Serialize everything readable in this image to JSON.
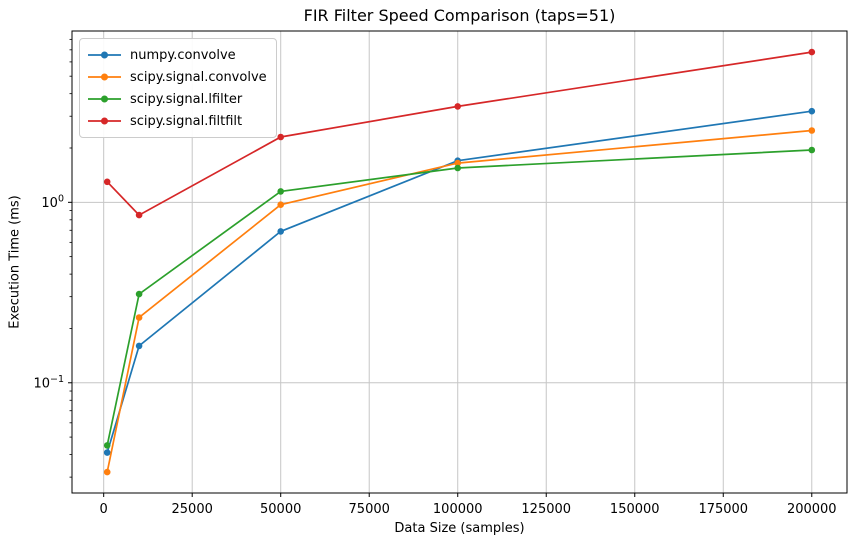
{
  "chart_data": {
    "type": "line",
    "title": "FIR Filter Speed Comparison (taps=51)",
    "xlabel": "Data Size (samples)",
    "ylabel": "Execution Time (ms)",
    "yscale": "log",
    "grid": true,
    "legend_position": "upper left",
    "x": [
      1000,
      10000,
      50000,
      100000,
      200000
    ],
    "series": [
      {
        "name": "numpy.convolve",
        "color": "#1f77b4",
        "values": [
          0.041,
          0.16,
          0.69,
          1.7,
          3.2
        ]
      },
      {
        "name": "scipy.signal.convolve",
        "color": "#ff7f0e",
        "values": [
          0.032,
          0.23,
          0.97,
          1.65,
          2.5
        ]
      },
      {
        "name": "scipy.signal.lfilter",
        "color": "#2ca02c",
        "values": [
          0.045,
          0.31,
          1.15,
          1.55,
          1.95
        ]
      },
      {
        "name": "scipy.signal.filtfilt",
        "color": "#d62728",
        "values": [
          1.3,
          0.85,
          2.3,
          3.4,
          6.8
        ]
      }
    ],
    "xlim": [
      -8950,
      209950
    ],
    "ylim": [
      0.0245,
      8.9
    ],
    "x_ticks": [
      0,
      25000,
      50000,
      75000,
      100000,
      125000,
      150000,
      175000,
      200000
    ],
    "x_tick_labels": [
      "0",
      "25000",
      "50000",
      "75000",
      "100000",
      "125000",
      "150000",
      "175000",
      "200000"
    ],
    "y_major_ticks": [
      {
        "value": 1,
        "base": "10",
        "exponent": "0"
      },
      {
        "value": 0.1,
        "base": "10",
        "exponent": "−1"
      }
    ]
  },
  "colors": {
    "grid": "#c6c6c6",
    "spine": "#000000",
    "tick": "#000000",
    "text": "#000000",
    "background": "#ffffff"
  }
}
